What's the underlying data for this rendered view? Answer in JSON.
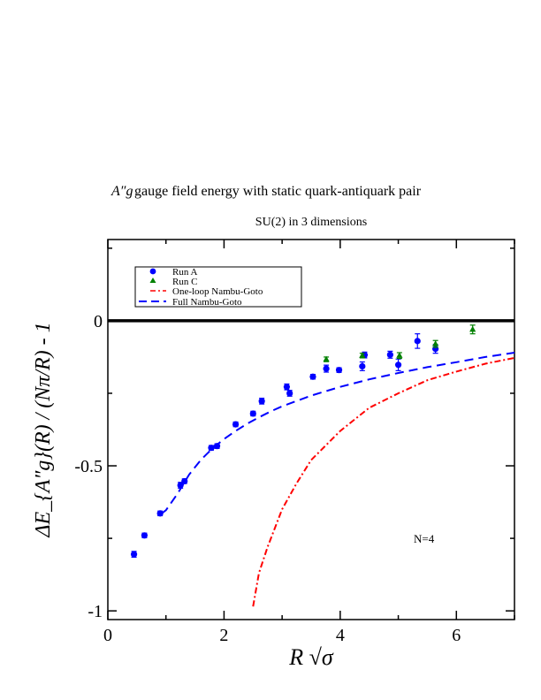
{
  "chart_data": {
    "type": "scatter",
    "title": "gauge field energy with static quark-antiquark pair",
    "title_symbol": "A″g",
    "subtitle": "SU(2) in 3 dimensions",
    "xlabel": "R √σ",
    "ylabel": "ΔE_{A″g}(R) / (Nπ/R) - 1",
    "xlim": [
      0,
      7
    ],
    "ylim": [
      -1.03,
      0.28
    ],
    "x_ticks": [
      0,
      2,
      4,
      6
    ],
    "x_tick_labels": [
      "0",
      "2",
      "4",
      "6"
    ],
    "y_ticks": [
      -1,
      -0.5,
      0
    ],
    "y_tick_labels": [
      "-1",
      "-0.5",
      "0"
    ],
    "grid": false,
    "legend_position": "top-left",
    "annotation": "N=4",
    "colors": {
      "run_a": "#0000ff",
      "run_c": "#008000",
      "one_loop": "#ff0000",
      "full_ng": "#0000ff",
      "zero_line": "#000000"
    },
    "series": [
      {
        "name": "Run A",
        "kind": "points",
        "marker": "circle",
        "points": [
          {
            "x": 0.45,
            "y": -0.805,
            "err": 0.01
          },
          {
            "x": 0.63,
            "y": -0.74,
            "err": 0.008
          },
          {
            "x": 0.9,
            "y": -0.664,
            "err": 0.008
          },
          {
            "x": 1.25,
            "y": -0.567,
            "err": 0.01
          },
          {
            "x": 1.32,
            "y": -0.553,
            "err": 0.008
          },
          {
            "x": 1.78,
            "y": -0.438,
            "err": 0.008
          },
          {
            "x": 1.88,
            "y": -0.432,
            "err": 0.008
          },
          {
            "x": 2.2,
            "y": -0.357,
            "err": 0.008
          },
          {
            "x": 2.5,
            "y": -0.32,
            "err": 0.008
          },
          {
            "x": 2.65,
            "y": -0.277,
            "err": 0.01
          },
          {
            "x": 3.08,
            "y": -0.228,
            "err": 0.01
          },
          {
            "x": 3.13,
            "y": -0.25,
            "err": 0.01
          },
          {
            "x": 3.53,
            "y": -0.193,
            "err": 0.008
          },
          {
            "x": 3.76,
            "y": -0.165,
            "err": 0.012
          },
          {
            "x": 3.98,
            "y": -0.17,
            "err": 0.008
          },
          {
            "x": 4.38,
            "y": -0.157,
            "err": 0.015
          },
          {
            "x": 4.42,
            "y": -0.118,
            "err": 0.01
          },
          {
            "x": 4.86,
            "y": -0.117,
            "err": 0.012
          },
          {
            "x": 5.0,
            "y": -0.152,
            "err": 0.02
          },
          {
            "x": 5.33,
            "y": -0.07,
            "err": 0.025
          },
          {
            "x": 5.64,
            "y": -0.097,
            "err": 0.015
          }
        ]
      },
      {
        "name": "Run C",
        "kind": "points",
        "marker": "triangle",
        "points": [
          {
            "x": 3.76,
            "y": -0.133,
            "err": 0.008
          },
          {
            "x": 4.38,
            "y": -0.12,
            "err": 0.008
          },
          {
            "x": 5.02,
            "y": -0.12,
            "err": 0.01
          },
          {
            "x": 5.64,
            "y": -0.08,
            "err": 0.012
          },
          {
            "x": 6.28,
            "y": -0.03,
            "err": 0.015
          }
        ]
      },
      {
        "name": "One-loop Nambu-Goto",
        "kind": "curve",
        "style": "dash-dot",
        "x": [
          2.5,
          2.6,
          2.75,
          3.0,
          3.25,
          3.5,
          4.0,
          4.5,
          5.0,
          5.5,
          6.0,
          6.5,
          7.0
        ],
        "y": [
          -0.985,
          -0.87,
          -0.78,
          -0.65,
          -0.56,
          -0.48,
          -0.38,
          -0.3,
          -0.25,
          -0.205,
          -0.175,
          -0.148,
          -0.128
        ]
      },
      {
        "name": "Full Nambu-Goto",
        "kind": "curve",
        "style": "dashed",
        "x": [
          0.92,
          1.0,
          1.2,
          1.4,
          1.6,
          1.8,
          2.0,
          2.2,
          2.4,
          2.6,
          2.8,
          3.0,
          3.5,
          4.0,
          4.5,
          5.0,
          5.5,
          6.0,
          6.5,
          7.0
        ],
        "y": [
          -0.665,
          -0.653,
          -0.596,
          -0.53,
          -0.48,
          -0.44,
          -0.408,
          -0.38,
          -0.355,
          -0.333,
          -0.313,
          -0.295,
          -0.258,
          -0.228,
          -0.202,
          -0.18,
          -0.16,
          -0.143,
          -0.125,
          -0.11
        ]
      }
    ]
  }
}
